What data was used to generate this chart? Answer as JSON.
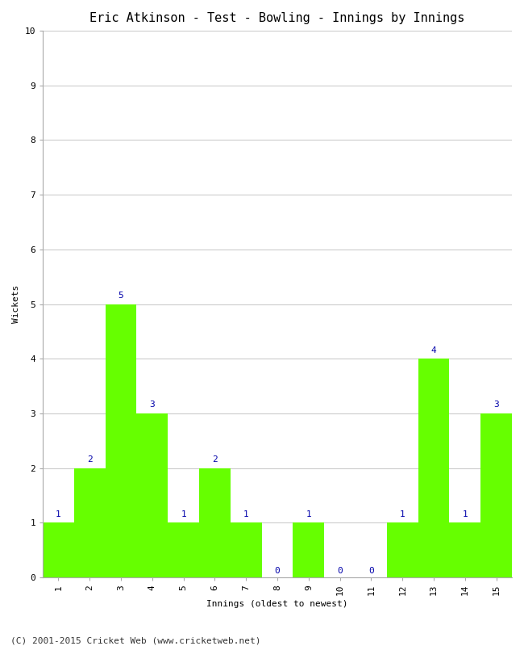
{
  "title": "Eric Atkinson - Test - Bowling - Innings by Innings",
  "xlabel": "Innings (oldest to newest)",
  "ylabel": "Wickets",
  "innings": [
    1,
    2,
    3,
    4,
    5,
    6,
    7,
    8,
    9,
    10,
    11,
    12,
    13,
    14,
    15
  ],
  "wickets": [
    1,
    2,
    5,
    3,
    1,
    2,
    1,
    0,
    1,
    0,
    0,
    1,
    4,
    1,
    3
  ],
  "bar_color": "#66ff00",
  "bar_edge_color": "#66ff00",
  "label_color": "#0000aa",
  "ylim": [
    0,
    10
  ],
  "yticks": [
    0,
    1,
    2,
    3,
    4,
    5,
    6,
    7,
    8,
    9,
    10
  ],
  "grid_color": "#cccccc",
  "background_color": "#ffffff",
  "footer": "(C) 2001-2015 Cricket Web (www.cricketweb.net)",
  "title_fontsize": 11,
  "label_fontsize": 8,
  "tick_fontsize": 8,
  "bar_label_fontsize": 8,
  "footer_fontsize": 8
}
